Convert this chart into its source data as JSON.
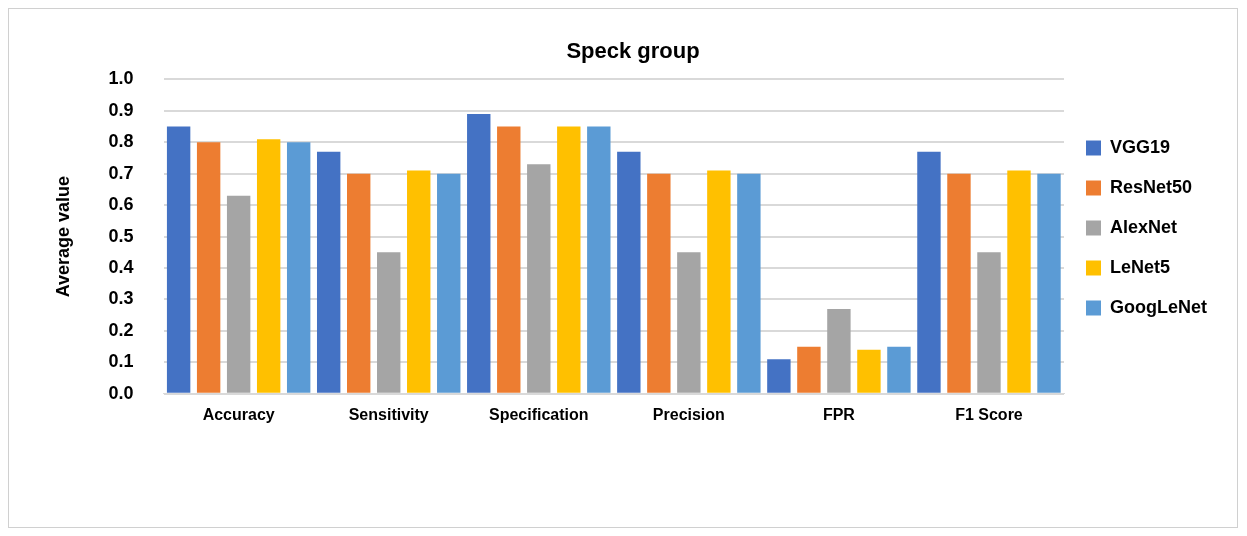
{
  "chart_data": {
    "type": "bar",
    "title": "Speck group",
    "ylabel": "Average value",
    "categories": [
      "Accuracy",
      "Sensitivity",
      "Specification",
      "Precision",
      "FPR",
      "F1 Score"
    ],
    "series": [
      {
        "name": "VGG19",
        "color": "#4472c4",
        "values": [
          0.85,
          0.77,
          0.89,
          0.77,
          0.11,
          0.77
        ]
      },
      {
        "name": "ResNet50",
        "color": "#ed7d31",
        "values": [
          0.8,
          0.7,
          0.85,
          0.7,
          0.15,
          0.7
        ]
      },
      {
        "name": "AlexNet",
        "color": "#a5a5a5",
        "values": [
          0.63,
          0.45,
          0.73,
          0.45,
          0.27,
          0.45
        ]
      },
      {
        "name": "LeNet5",
        "color": "#ffc000",
        "values": [
          0.81,
          0.71,
          0.85,
          0.71,
          0.14,
          0.71
        ]
      },
      {
        "name": "GoogLeNet",
        "color": "#5b9bd5",
        "values": [
          0.8,
          0.7,
          0.85,
          0.7,
          0.15,
          0.7
        ]
      }
    ],
    "ylim": [
      0,
      1
    ],
    "yticks": [
      {
        "value": 0,
        "label": "0.0"
      },
      {
        "value": 0.1,
        "label": "0.1"
      },
      {
        "value": 0.2,
        "label": "0.2"
      },
      {
        "value": 0.3,
        "label": "0.3"
      },
      {
        "value": 0.4,
        "label": "0.4"
      },
      {
        "value": 0.5,
        "label": "0.5"
      },
      {
        "value": 0.6,
        "label": "0.6"
      },
      {
        "value": 0.7,
        "label": "0.7"
      },
      {
        "value": 0.8,
        "label": "0.8"
      },
      {
        "value": 0.9,
        "label": "0.9"
      },
      {
        "value": 1,
        "label": "1.0"
      }
    ],
    "grid": "y",
    "legend": "right"
  }
}
